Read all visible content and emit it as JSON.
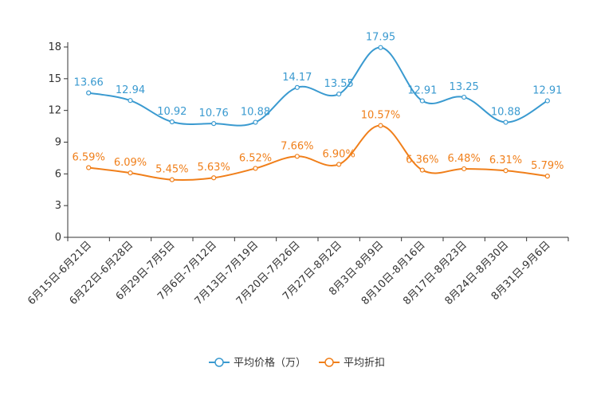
{
  "chart_data": {
    "type": "line",
    "title": "",
    "xlabel": "",
    "ylabel": "",
    "ylim": [
      0,
      18
    ],
    "yticks": [
      0,
      3,
      6,
      9,
      12,
      15,
      18
    ],
    "categories": [
      "6月15日-6月21日",
      "6月22日-6月28日",
      "6月29日-7月5日",
      "7月6日-7月12日",
      "7月13日-7月19日",
      "7月20日-7月26日",
      "7月27日-8月2日",
      "8月3日-8月9日",
      "8月10日-8月16日",
      "8月17日-8月23日",
      "8月24日-8月30日",
      "8月31日-9月6日"
    ],
    "series": [
      {
        "name": "平均价格（万）",
        "color": "#3a9ad0",
        "values": [
          13.66,
          12.94,
          10.92,
          10.76,
          10.88,
          14.17,
          13.55,
          17.95,
          12.91,
          13.25,
          10.88,
          12.91
        ],
        "labels": [
          "13.66",
          "12.94",
          "10.92",
          "10.76",
          "10.88",
          "14.17",
          "13.55",
          "17.95",
          "12.91",
          "13.25",
          "10.88",
          "12.91"
        ]
      },
      {
        "name": "平均折扣",
        "color": "#f07f1a",
        "values": [
          6.59,
          6.09,
          5.45,
          5.63,
          6.52,
          7.66,
          6.9,
          10.57,
          6.36,
          6.48,
          6.31,
          5.79
        ],
        "labels": [
          "6.59%",
          "6.09%",
          "5.45%",
          "5.63%",
          "6.52%",
          "7.66%",
          "6.90%",
          "10.57%",
          "6.36%",
          "6.48%",
          "6.31%",
          "5.79%"
        ]
      }
    ],
    "legend_position": "bottom-center",
    "grid": false
  }
}
